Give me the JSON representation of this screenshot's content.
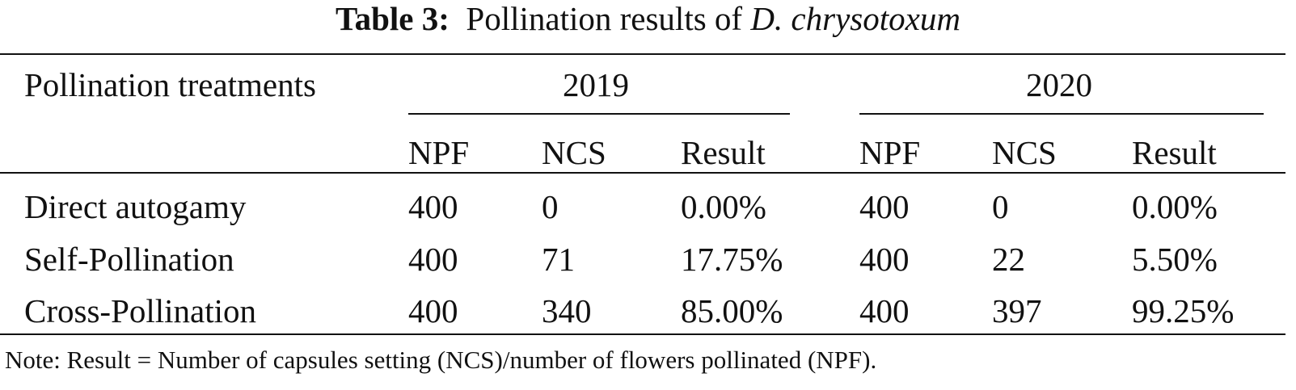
{
  "caption": {
    "label": "Table 3:",
    "text": "Pollination results of",
    "species": "D. chrysotoxum"
  },
  "table": {
    "row_header_label": "Pollination treatments",
    "groups": [
      "2019",
      "2020"
    ],
    "columns": [
      "NPF",
      "NCS",
      "Result",
      "NPF",
      "NCS",
      "Result"
    ],
    "rows": [
      {
        "treatment": "Direct autogamy",
        "cells": [
          "400",
          "0",
          "0.00%",
          "400",
          "0",
          "0.00%"
        ]
      },
      {
        "treatment": "Self-Pollination",
        "cells": [
          "400",
          "71",
          "17.75%",
          "400",
          "22",
          "5.50%"
        ]
      },
      {
        "treatment": "Cross-Pollination",
        "cells": [
          "400",
          "340",
          "85.00%",
          "400",
          "397",
          "99.25%"
        ]
      }
    ]
  },
  "note": "Note: Result = Number of capsules setting (NCS)/number of flowers pollinated (NPF)."
}
